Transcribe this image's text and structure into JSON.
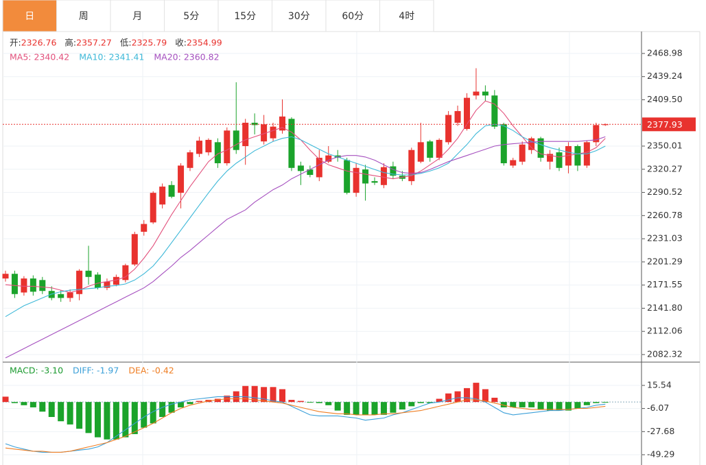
{
  "tabs": [
    "日",
    "周",
    "月",
    "5分",
    "15分",
    "30分",
    "60分",
    "4时"
  ],
  "selected_tab": 0,
  "chart_data": [
    {
      "type": "candlestick",
      "up_color": "#e8322e",
      "down_color": "#1ba32b",
      "summary": [
        {
          "label": "开:",
          "value": 2326.76
        },
        {
          "label": "高:",
          "value": 2357.27
        },
        {
          "label": "低:",
          "value": 2325.79
        },
        {
          "label": "收:",
          "value": 2354.99
        }
      ],
      "last_price": 2377.93,
      "ylim": [
        2072.6,
        2497.1
      ],
      "yticks": [
        2468.98,
        2439.24,
        {
          "value": 2409.5,
          "label": "2409.50"
        },
        2350.01,
        2320.27,
        2290.52,
        2260.78,
        2231.03,
        2201.29,
        2171.55,
        {
          "value": 2141.8,
          "label": "2141.80"
        },
        2112.06,
        2082.32
      ],
      "grid": true,
      "open": [
        2180,
        2186,
        2162,
        2180,
        2178,
        2164,
        2160,
        2155,
        2160,
        2190,
        2185,
        2168,
        2172,
        2178,
        2198,
        2240,
        2252,
        2275,
        2300,
        2290,
        2322,
        2340,
        2342,
        2355,
        2328,
        2370,
        2350,
        2380,
        2356,
        2360,
        2370,
        2385,
        2325,
        2320,
        2310,
        2330,
        2338,
        2332,
        2290,
        2320,
        2305,
        2300,
        2324,
        2312,
        2305,
        2330,
        2356,
        2335,
        2355,
        2380,
        2372,
        2415,
        2420,
        2415,
        2378,
        2325,
        2330,
        2345,
        2360,
        2330,
        2342,
        2325,
        2350,
        2325,
        2355,
        2377
      ],
      "high": [
        2190,
        2190,
        2183,
        2184,
        2182,
        2170,
        2165,
        2166,
        2192,
        2222,
        2188,
        2180,
        2185,
        2199,
        2240,
        2255,
        2292,
        2302,
        2305,
        2328,
        2345,
        2362,
        2360,
        2360,
        2374,
        2432,
        2385,
        2392,
        2390,
        2380,
        2410,
        2387,
        2330,
        2325,
        2345,
        2350,
        2345,
        2335,
        2328,
        2326,
        2310,
        2328,
        2330,
        2318,
        2348,
        2380,
        2358,
        2360,
        2395,
        2402,
        2418,
        2450,
        2428,
        2422,
        2380,
        2335,
        2356,
        2362,
        2362,
        2345,
        2348,
        2355,
        2352,
        2357,
        2380,
        2379
      ],
      "low": [
        2176,
        2155,
        2158,
        2158,
        2160,
        2152,
        2150,
        2150,
        2152,
        2172,
        2166,
        2165,
        2170,
        2175,
        2196,
        2235,
        2250,
        2270,
        2283,
        2270,
        2318,
        2336,
        2338,
        2322,
        2325,
        2340,
        2326,
        2365,
        2352,
        2356,
        2366,
        2318,
        2300,
        2310,
        2305,
        2328,
        2330,
        2288,
        2285,
        2280,
        2300,
        2296,
        2308,
        2305,
        2300,
        2328,
        2330,
        2332,
        2352,
        2376,
        2370,
        2410,
        2408,
        2372,
        2325,
        2322,
        2326,
        2340,
        2330,
        2320,
        2318,
        2315,
        2318,
        2322,
        2350,
        2376
      ],
      "close": [
        2186,
        2160,
        2180,
        2163,
        2164,
        2155,
        2155,
        2162,
        2190,
        2182,
        2168,
        2176,
        2182,
        2197,
        2237,
        2250,
        2290,
        2298,
        2285,
        2325,
        2342,
        2357,
        2358,
        2328,
        2370,
        2345,
        2380,
        2377,
        2378,
        2375,
        2388,
        2322,
        2318,
        2313,
        2335,
        2338,
        2335,
        2290,
        2322,
        2302,
        2303,
        2323,
        2312,
        2308,
        2345,
        2355,
        2335,
        2358,
        2390,
        2395,
        2412,
        2420,
        2415,
        2375,
        2328,
        2332,
        2352,
        2360,
        2335,
        2340,
        2322,
        2350,
        2325,
        2355,
        2377,
        2378
      ],
      "series": [
        {
          "name": "MA5:",
          "current": 2340.42,
          "color": "#e2507c",
          "values": [
            2172,
            2171,
            2170,
            2170,
            2169,
            2168,
            2165,
            2162,
            2165,
            2170,
            2174,
            2176,
            2178,
            2182,
            2192,
            2206,
            2222,
            2242,
            2262,
            2280,
            2298,
            2314,
            2330,
            2340,
            2345,
            2352,
            2358,
            2362,
            2366,
            2370,
            2374,
            2368,
            2358,
            2345,
            2333,
            2326,
            2322,
            2318,
            2316,
            2314,
            2312,
            2310,
            2308,
            2310,
            2312,
            2318,
            2326,
            2334,
            2346,
            2360,
            2378,
            2396,
            2408,
            2404,
            2392,
            2376,
            2362,
            2348,
            2340,
            2338,
            2336,
            2338,
            2340,
            2342,
            2348,
            2360
          ]
        },
        {
          "name": "MA10:",
          "current": 2341.41,
          "color": "#3db8d8",
          "values": [
            2131,
            2138,
            2145,
            2150,
            2155,
            2160,
            2163,
            2165,
            2166,
            2167,
            2168,
            2170,
            2171,
            2173,
            2178,
            2186,
            2196,
            2210,
            2226,
            2242,
            2258,
            2274,
            2290,
            2305,
            2318,
            2328,
            2336,
            2344,
            2350,
            2356,
            2360,
            2362,
            2358,
            2352,
            2346,
            2340,
            2336,
            2332,
            2328,
            2324,
            2320,
            2316,
            2314,
            2313,
            2313,
            2315,
            2318,
            2322,
            2328,
            2340,
            2352,
            2366,
            2376,
            2378,
            2376,
            2370,
            2362,
            2356,
            2352,
            2348,
            2345,
            2342,
            2340,
            2340,
            2344,
            2350
          ]
        },
        {
          "name": "MA20:",
          "current": 2360.82,
          "color": "#a54fbf",
          "values": [
            2078,
            2084,
            2090,
            2096,
            2102,
            2108,
            2114,
            2120,
            2126,
            2132,
            2138,
            2144,
            2150,
            2156,
            2162,
            2168,
            2176,
            2186,
            2196,
            2207,
            2216,
            2226,
            2236,
            2246,
            2256,
            2262,
            2268,
            2278,
            2286,
            2294,
            2300,
            2308,
            2314,
            2320,
            2326,
            2332,
            2336,
            2338,
            2338,
            2336,
            2332,
            2326,
            2320,
            2316,
            2315,
            2316,
            2320,
            2325,
            2330,
            2334,
            2338,
            2342,
            2346,
            2350,
            2352,
            2353,
            2354,
            2355,
            2356,
            2356,
            2356,
            2356,
            2356,
            2357,
            2358,
            2362
          ]
        }
      ]
    },
    {
      "type": "macd",
      "name": "MACD:",
      "current": {
        "value": -3.1,
        "label": "-3.10"
      },
      "color": "#1a9a2e",
      "up_color": "#e8322e",
      "down_color": "#1ba32b",
      "ylim": [
        -58.9,
        37.3
      ],
      "yticks": [
        15.54,
        -6.07,
        -27.68,
        -49.29
      ],
      "values": [
        5,
        -1,
        -3,
        -5,
        -9,
        -14,
        -18,
        -21,
        -25,
        -29,
        -33,
        -35,
        -35,
        -33,
        -30,
        -24,
        -20,
        -14,
        -10,
        -5,
        -2,
        1,
        2,
        3,
        6,
        10,
        15,
        15,
        14,
        14,
        12,
        2,
        1,
        -0.5,
        -1,
        -3,
        -8,
        -12,
        -12,
        -12,
        -12,
        -12,
        -10,
        -7,
        -4,
        -1,
        -1,
        3,
        8,
        10,
        13,
        18,
        12,
        4,
        -5,
        -5,
        -5,
        -5,
        -7,
        -8,
        -8,
        -8,
        -6,
        -3,
        -1,
        -0.5
      ],
      "series": [
        {
          "name": "DIFF:",
          "current": -1.97,
          "color": "#3a9fd8",
          "values": [
            -39,
            -42,
            -44,
            -46,
            -47,
            -47,
            -47,
            -46,
            -45,
            -44,
            -42,
            -38,
            -32,
            -26,
            -20,
            -14,
            -9,
            -5,
            -2,
            0,
            2,
            3,
            4,
            5,
            5,
            5,
            5,
            4,
            3,
            1,
            0,
            -4,
            -8,
            -12,
            -13,
            -13,
            -13,
            -14,
            -15,
            -17,
            -16,
            -15,
            -12,
            -10,
            -7,
            -4,
            -1,
            0,
            2,
            4,
            4,
            3,
            0,
            -5,
            -10,
            -12,
            -11,
            -10,
            -9,
            -8,
            -8,
            -7,
            -6,
            -5,
            -3,
            -2
          ]
        },
        {
          "name": "DEA:",
          "current": -0.42,
          "color": "#ef7d22",
          "values": [
            -43,
            -44,
            -45,
            -46,
            -46,
            -47,
            -47,
            -46,
            -44,
            -42,
            -40,
            -38,
            -35,
            -32,
            -28,
            -24,
            -20,
            -15,
            -10,
            -6,
            -3,
            -1,
            1,
            2,
            3,
            3,
            3,
            2,
            1,
            0,
            -1,
            -3,
            -5,
            -7,
            -9,
            -10,
            -11,
            -11,
            -12,
            -12,
            -12,
            -11,
            -11,
            -10,
            -9,
            -8,
            -6,
            -4,
            -2,
            0,
            2,
            2,
            1,
            -1,
            -3,
            -5,
            -6,
            -7,
            -7,
            -7,
            -7,
            -7,
            -6,
            -6,
            -5,
            -4
          ]
        }
      ]
    }
  ]
}
